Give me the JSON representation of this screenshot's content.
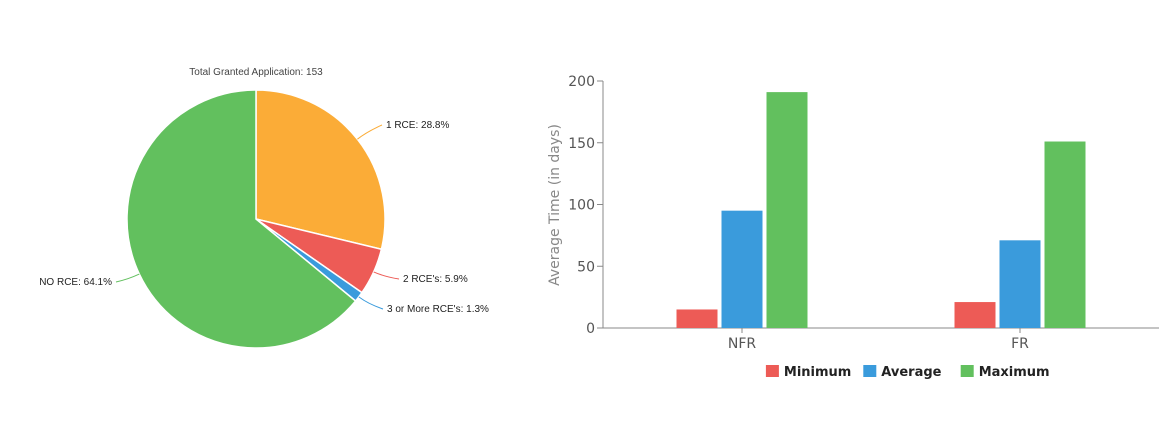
{
  "chart_data": [
    {
      "type": "pie",
      "title": "Total Granted Application: 153",
      "slices": [
        {
          "label": "1 RCE: 28.8%",
          "value": 28.8,
          "color": "#FBAC37"
        },
        {
          "label": "2 RCE's: 5.9%",
          "value": 5.9,
          "color": "#ED5B56"
        },
        {
          "label": "3 or More RCE's: 1.3%",
          "value": 1.3,
          "color": "#3A9BDC"
        },
        {
          "label": "NO RCE: 64.1%",
          "value": 64.1,
          "color": "#62C05E"
        }
      ]
    },
    {
      "type": "bar",
      "categories": [
        "NFR",
        "FR"
      ],
      "ylabel": "Average Time (in days)",
      "xlabel": "",
      "ylim": [
        0,
        200
      ],
      "yticks": [
        0,
        50,
        100,
        150,
        200
      ],
      "legend_position": "bottom",
      "series": [
        {
          "name": "Minimum",
          "values": [
            15,
            21
          ],
          "color": "#ED5B56"
        },
        {
          "name": "Average",
          "values": [
            95,
            71
          ],
          "color": "#3A9BDC"
        },
        {
          "name": "Maximum",
          "values": [
            191,
            151
          ],
          "color": "#62C05E"
        }
      ]
    }
  ]
}
